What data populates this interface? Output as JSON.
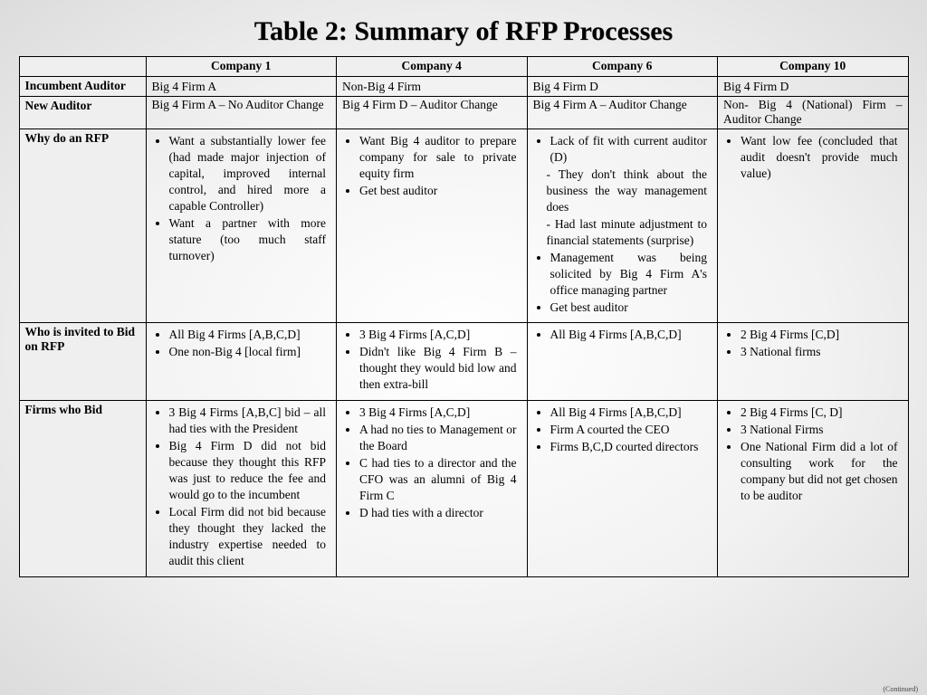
{
  "title": "Table 2: Summary of RFP Processes",
  "continued_label": "(Continued)",
  "columns": {
    "label_header": "",
    "company1": "Company  1",
    "company4": "Company  4",
    "company6": "Company  6",
    "company10": "Company  10"
  },
  "rows": {
    "incumbent": {
      "label": "Incumbent Auditor",
      "c1": "Big 4 Firm A",
      "c4": "Non-Big 4 Firm",
      "c6": "Big 4 Firm D",
      "c10": "Big 4 Firm D"
    },
    "new_auditor": {
      "label": "New Auditor",
      "c1": "Big 4 Firm A – No Auditor Change",
      "c4": "Big 4 Firm D – Auditor Change",
      "c6": "Big 4 Firm A – Auditor Change",
      "c10": "Non- Big 4 (National) Firm  – Auditor Change"
    },
    "why_rfp": {
      "label": "Why do an RFP",
      "c1": [
        "Want a substantially lower fee (had made major injection of capital, improved internal control, and hired more a capable Controller)",
        "Want a partner with more stature (too much staff turnover)"
      ],
      "c4": [
        "Want Big 4 auditor to prepare company for sale to private equity firm",
        "Get best auditor"
      ],
      "c6": [
        "Lack of fit with current auditor (D)",
        "- They don't think about the business the way management does",
        "- Had last minute adjustment to financial statements (surprise)",
        "Management was being solicited by Big 4 Firm A's office managing partner",
        "Get best auditor"
      ],
      "c10": [
        "Want low fee (concluded that audit doesn't provide much value)"
      ]
    },
    "who_invited": {
      "label": "Who is invited to Bid on RFP",
      "c1": [
        "All Big 4 Firms [A,B,C,D]",
        "One non-Big 4 [local firm]"
      ],
      "c4": [
        "3 Big 4 Firms [A,C,D]",
        "Didn't like Big 4 Firm B – thought they would bid low and then extra-bill"
      ],
      "c6": [
        "All Big 4 Firms [A,B,C,D]"
      ],
      "c10": [
        "2 Big 4 Firms [C,D]",
        "3 National firms"
      ]
    },
    "firms_bid": {
      "label": "Firms who Bid",
      "c1": [
        "3 Big 4 Firms [A,B,C] bid – all had ties with the President",
        "Big 4 Firm D did not bid because they thought this RFP was just to reduce the fee  and would go to the incumbent",
        "Local Firm did not bid because they thought they lacked the industry expertise needed to audit this client"
      ],
      "c4": [
        "3 Big 4 Firms [A,C,D]",
        "A had no ties to Management or the Board",
        "C had ties to a director and the CFO was an alumni of Big 4 Firm C",
        "D had ties with a director"
      ],
      "c6": [
        "All Big 4 Firms [A,B,C,D]",
        "Firm A courted the CEO",
        "Firms B,C,D courted directors"
      ],
      "c10": [
        "2 Big 4 Firms [C, D]",
        "3 National Firms",
        "One National Firm did a lot of consulting work for the company but did not get chosen to be auditor"
      ]
    }
  }
}
